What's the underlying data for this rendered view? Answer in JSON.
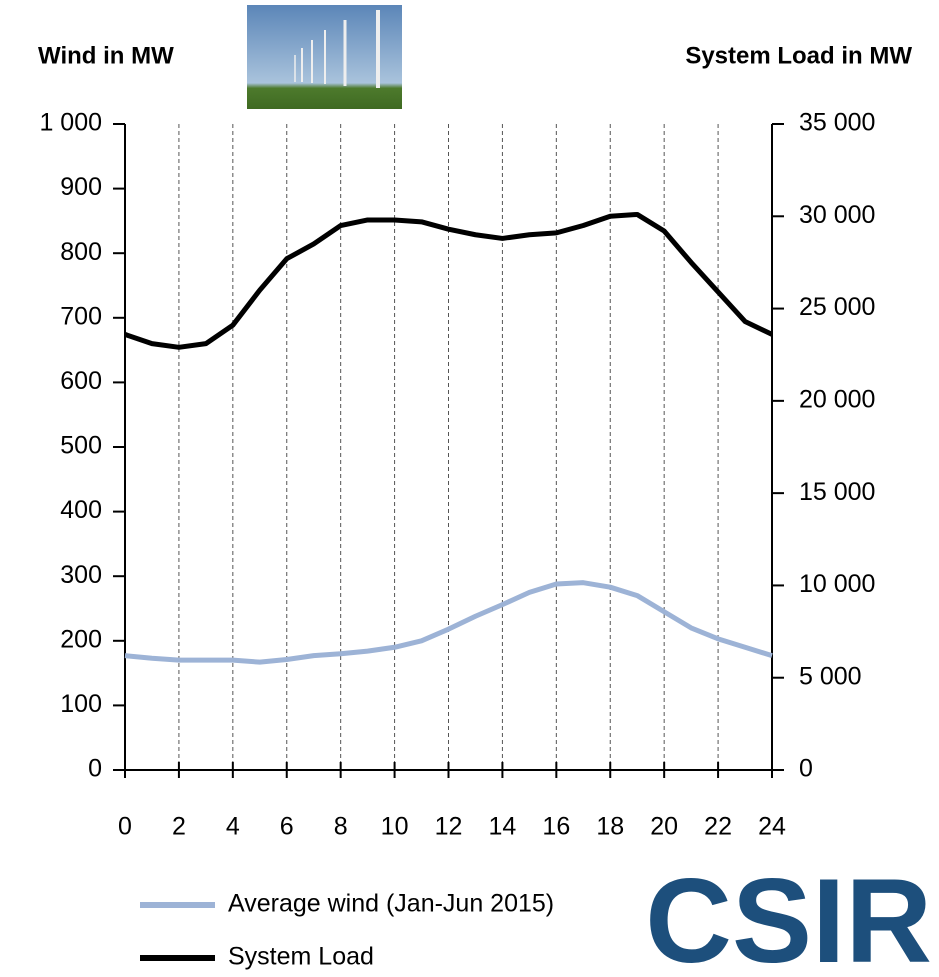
{
  "chart_data": {
    "type": "line",
    "y_label": "Wind in MW",
    "y2_label": "System Load in MW",
    "logo": "CSIR",
    "x": [
      0,
      1,
      2,
      3,
      4,
      5,
      6,
      7,
      8,
      9,
      10,
      11,
      12,
      13,
      14,
      15,
      16,
      17,
      18,
      19,
      20,
      21,
      22,
      23,
      24
    ],
    "xlim": [
      0,
      24
    ],
    "xticks": [
      0,
      2,
      4,
      6,
      8,
      10,
      12,
      14,
      16,
      18,
      20,
      22,
      24
    ],
    "ylim": [
      0,
      1000
    ],
    "yticks": [
      0,
      100,
      200,
      300,
      400,
      500,
      600,
      700,
      800,
      900,
      {
        "value": 1000,
        "label": "1 000"
      }
    ],
    "y2lim": [
      0,
      35000
    ],
    "y2ticks": [
      0,
      {
        "value": 5000,
        "label": "5 000"
      },
      {
        "value": 10000,
        "label": "10 000"
      },
      {
        "value": 15000,
        "label": "15 000"
      },
      {
        "value": 20000,
        "label": "20 000"
      },
      {
        "value": 25000,
        "label": "25 000"
      },
      {
        "value": 30000,
        "label": "30 000"
      },
      {
        "value": 35000,
        "label": "35 000"
      }
    ],
    "grid": true,
    "series": [
      {
        "name": "Average wind (Jan-Jun 2015)",
        "color": "#9db3d6",
        "values": [
          177,
          173,
          170,
          170,
          170,
          167,
          171,
          177,
          180,
          184,
          190,
          200,
          218,
          238,
          256,
          275,
          288,
          290,
          283,
          270,
          245,
          220,
          203,
          190,
          177
        ]
      },
      {
        "name": "System Load",
        "color": "#000000",
        "axis": "y2",
        "values": [
          23600,
          23100,
          22900,
          23100,
          24100,
          26000,
          27700,
          28500,
          29500,
          29800,
          29800,
          29700,
          29300,
          29000,
          28800,
          29000,
          29100,
          29500,
          30000,
          30100,
          29200,
          27500,
          25900,
          24300,
          23600
        ]
      }
    ]
  }
}
